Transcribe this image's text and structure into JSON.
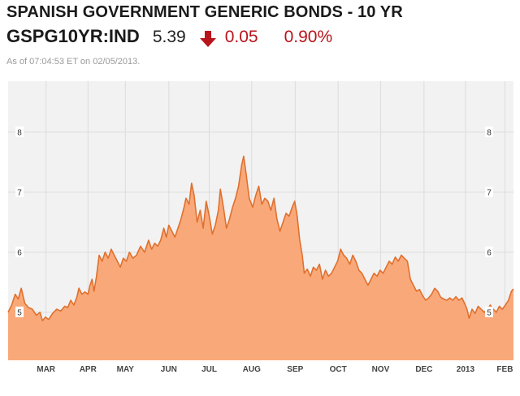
{
  "header": {
    "title": "SPANISH GOVERNMENT GENERIC BONDS - 10 YR",
    "symbol": "GSPG10YR:IND",
    "price": "5.39",
    "change": "0.05",
    "percent": "0.90%",
    "as_of": "As of 07:04:53 ET on 02/05/2013.",
    "direction_icon": "arrow-down-icon"
  },
  "colors": {
    "negative": "#b8141b",
    "fill": "#f9a979",
    "line": "#e0702e",
    "plot_bg": "#f2f2f2",
    "grid": "#dcdcdc"
  },
  "chart_data": {
    "type": "area",
    "title": "",
    "xlabel": "",
    "ylabel": "",
    "ylim": [
      4.2,
      8.85
    ],
    "yticks": [
      5,
      6,
      7,
      8
    ],
    "xticks": [
      {
        "label": "MAR",
        "t": 0.075
      },
      {
        "label": "APR",
        "t": 0.158
      },
      {
        "label": "MAY",
        "t": 0.232
      },
      {
        "label": "JUN",
        "t": 0.318
      },
      {
        "label": "JUL",
        "t": 0.398
      },
      {
        "label": "AUG",
        "t": 0.482
      },
      {
        "label": "SEP",
        "t": 0.568
      },
      {
        "label": "OCT",
        "t": 0.653
      },
      {
        "label": "NOV",
        "t": 0.737
      },
      {
        "label": "DEC",
        "t": 0.823
      },
      {
        "label": "2013",
        "t": 0.905
      },
      {
        "label": "FEB",
        "t": 0.983
      }
    ],
    "grid": true,
    "series": [
      {
        "values": [
          [
            0.0,
            5.0
          ],
          [
            0.007,
            5.12
          ],
          [
            0.014,
            5.3
          ],
          [
            0.02,
            5.22
          ],
          [
            0.026,
            5.4
          ],
          [
            0.033,
            5.15
          ],
          [
            0.04,
            5.08
          ],
          [
            0.048,
            5.05
          ],
          [
            0.056,
            4.95
          ],
          [
            0.063,
            5.0
          ],
          [
            0.068,
            4.86
          ],
          [
            0.074,
            4.92
          ],
          [
            0.08,
            4.88
          ],
          [
            0.088,
            4.98
          ],
          [
            0.096,
            5.05
          ],
          [
            0.104,
            5.02
          ],
          [
            0.112,
            5.1
          ],
          [
            0.118,
            5.08
          ],
          [
            0.124,
            5.2
          ],
          [
            0.13,
            5.12
          ],
          [
            0.136,
            5.25
          ],
          [
            0.14,
            5.4
          ],
          [
            0.146,
            5.3
          ],
          [
            0.152,
            5.34
          ],
          [
            0.158,
            5.3
          ],
          [
            0.162,
            5.45
          ],
          [
            0.166,
            5.55
          ],
          [
            0.17,
            5.35
          ],
          [
            0.175,
            5.6
          ],
          [
            0.18,
            5.95
          ],
          [
            0.186,
            5.85
          ],
          [
            0.192,
            6.0
          ],
          [
            0.198,
            5.9
          ],
          [
            0.204,
            6.05
          ],
          [
            0.21,
            5.95
          ],
          [
            0.216,
            5.85
          ],
          [
            0.222,
            5.75
          ],
          [
            0.228,
            5.9
          ],
          [
            0.234,
            5.85
          ],
          [
            0.24,
            6.0
          ],
          [
            0.247,
            5.9
          ],
          [
            0.254,
            5.95
          ],
          [
            0.262,
            6.1
          ],
          [
            0.27,
            6.0
          ],
          [
            0.278,
            6.2
          ],
          [
            0.284,
            6.05
          ],
          [
            0.29,
            6.15
          ],
          [
            0.296,
            6.1
          ],
          [
            0.302,
            6.2
          ],
          [
            0.308,
            6.4
          ],
          [
            0.313,
            6.25
          ],
          [
            0.318,
            6.45
          ],
          [
            0.324,
            6.35
          ],
          [
            0.33,
            6.25
          ],
          [
            0.336,
            6.4
          ],
          [
            0.342,
            6.55
          ],
          [
            0.348,
            6.75
          ],
          [
            0.352,
            6.9
          ],
          [
            0.358,
            6.8
          ],
          [
            0.363,
            7.15
          ],
          [
            0.368,
            6.95
          ],
          [
            0.374,
            6.5
          ],
          [
            0.38,
            6.7
          ],
          [
            0.386,
            6.4
          ],
          [
            0.392,
            6.85
          ],
          [
            0.398,
            6.6
          ],
          [
            0.404,
            6.3
          ],
          [
            0.41,
            6.45
          ],
          [
            0.416,
            6.7
          ],
          [
            0.42,
            7.05
          ],
          [
            0.426,
            6.75
          ],
          [
            0.432,
            6.4
          ],
          [
            0.438,
            6.55
          ],
          [
            0.444,
            6.75
          ],
          [
            0.45,
            6.9
          ],
          [
            0.456,
            7.1
          ],
          [
            0.462,
            7.45
          ],
          [
            0.466,
            7.6
          ],
          [
            0.471,
            7.3
          ],
          [
            0.477,
            6.9
          ],
          [
            0.484,
            6.75
          ],
          [
            0.49,
            6.95
          ],
          [
            0.496,
            7.1
          ],
          [
            0.502,
            6.8
          ],
          [
            0.508,
            6.9
          ],
          [
            0.514,
            6.85
          ],
          [
            0.52,
            6.7
          ],
          [
            0.526,
            6.9
          ],
          [
            0.532,
            6.55
          ],
          [
            0.538,
            6.35
          ],
          [
            0.544,
            6.5
          ],
          [
            0.55,
            6.65
          ],
          [
            0.556,
            6.6
          ],
          [
            0.562,
            6.75
          ],
          [
            0.567,
            6.85
          ],
          [
            0.572,
            6.6
          ],
          [
            0.577,
            6.2
          ],
          [
            0.582,
            5.95
          ],
          [
            0.586,
            5.65
          ],
          [
            0.592,
            5.72
          ],
          [
            0.598,
            5.6
          ],
          [
            0.604,
            5.75
          ],
          [
            0.61,
            5.7
          ],
          [
            0.616,
            5.8
          ],
          [
            0.622,
            5.55
          ],
          [
            0.628,
            5.7
          ],
          [
            0.634,
            5.6
          ],
          [
            0.64,
            5.65
          ],
          [
            0.646,
            5.75
          ],
          [
            0.652,
            5.85
          ],
          [
            0.658,
            6.05
          ],
          [
            0.664,
            5.95
          ],
          [
            0.67,
            5.9
          ],
          [
            0.676,
            5.8
          ],
          [
            0.682,
            5.95
          ],
          [
            0.688,
            5.85
          ],
          [
            0.694,
            5.7
          ],
          [
            0.7,
            5.65
          ],
          [
            0.706,
            5.55
          ],
          [
            0.712,
            5.45
          ],
          [
            0.718,
            5.55
          ],
          [
            0.724,
            5.65
          ],
          [
            0.73,
            5.6
          ],
          [
            0.736,
            5.7
          ],
          [
            0.742,
            5.65
          ],
          [
            0.748,
            5.75
          ],
          [
            0.754,
            5.85
          ],
          [
            0.76,
            5.8
          ],
          [
            0.766,
            5.92
          ],
          [
            0.772,
            5.85
          ],
          [
            0.778,
            5.95
          ],
          [
            0.784,
            5.9
          ],
          [
            0.79,
            5.85
          ],
          [
            0.796,
            5.55
          ],
          [
            0.802,
            5.45
          ],
          [
            0.808,
            5.35
          ],
          [
            0.814,
            5.38
          ],
          [
            0.82,
            5.28
          ],
          [
            0.826,
            5.2
          ],
          [
            0.832,
            5.24
          ],
          [
            0.838,
            5.3
          ],
          [
            0.844,
            5.4
          ],
          [
            0.85,
            5.35
          ],
          [
            0.856,
            5.25
          ],
          [
            0.862,
            5.22
          ],
          [
            0.868,
            5.2
          ],
          [
            0.874,
            5.24
          ],
          [
            0.88,
            5.2
          ],
          [
            0.886,
            5.26
          ],
          [
            0.892,
            5.2
          ],
          [
            0.898,
            5.24
          ],
          [
            0.903,
            5.15
          ],
          [
            0.908,
            5.05
          ],
          [
            0.912,
            4.9
          ],
          [
            0.918,
            5.05
          ],
          [
            0.924,
            4.98
          ],
          [
            0.93,
            5.1
          ],
          [
            0.936,
            5.05
          ],
          [
            0.942,
            5.0
          ],
          [
            0.948,
            5.04
          ],
          [
            0.954,
            5.12
          ],
          [
            0.96,
            5.05
          ],
          [
            0.966,
            5.0
          ],
          [
            0.972,
            5.1
          ],
          [
            0.978,
            5.05
          ],
          [
            0.984,
            5.12
          ],
          [
            0.99,
            5.2
          ],
          [
            0.996,
            5.35
          ],
          [
            1.0,
            5.39
          ]
        ]
      }
    ]
  }
}
